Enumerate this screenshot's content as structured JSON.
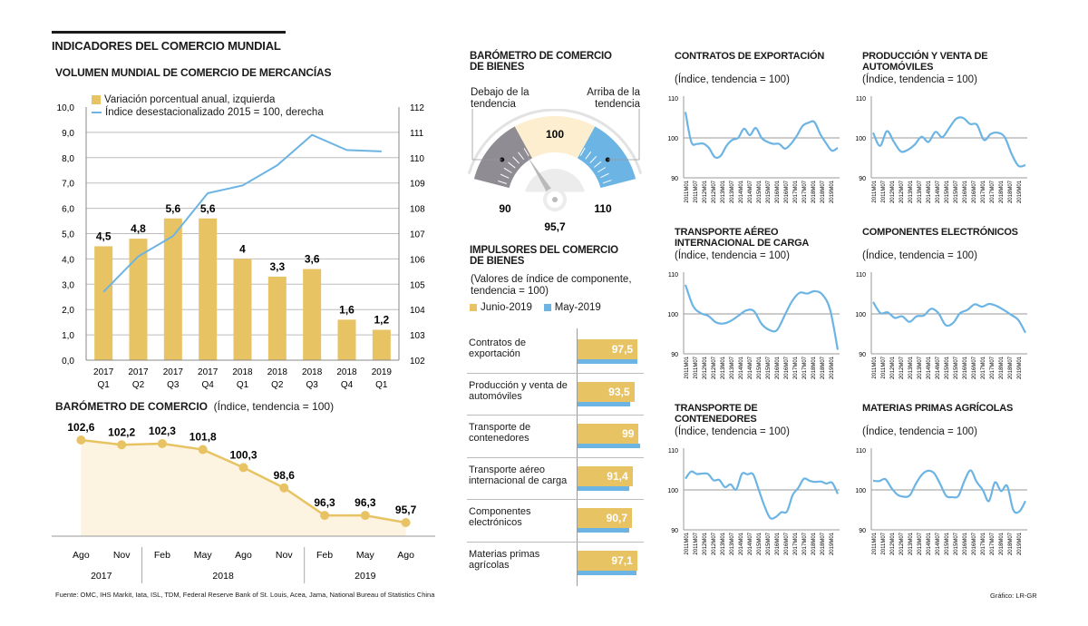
{
  "header": {
    "title": "INDICADORES DEL COMERCIO MUNDIAL",
    "volume_title": "VOLUMEN MUNDIAL DE COMERCIO DE MERCANCÍAS",
    "barometer_title": "BARÓMETRO DE COMERCIO",
    "barometer_subtitle": "(Índice, tendencia = 100)"
  },
  "footer": {
    "source": "Fuente: OMC,  IHS Markit, Iata, ISL, TDM,  Federal Reserve Bank of St. Louis, Acea, Jama, National Bureau of Statistics China",
    "credit": "Gráfico: LR-GR"
  },
  "colors": {
    "gold": "#E8C363",
    "blue": "#6CB4E4",
    "gray": "#8F8C93",
    "cream": "#FCEECF",
    "area": "#FDF3E1",
    "grid": "#BDBDBD"
  },
  "chart_data": [
    {
      "id": "volume",
      "type": "bar",
      "title": "VOLUMEN MUNDIAL DE COMERCIO DE MERCANCÍAS",
      "categories": [
        "2017|Q1",
        "2017|Q2",
        "2017|Q3",
        "2017|Q4",
        "2018|Q1",
        "2018|Q2",
        "2018|Q3",
        "2018|Q4",
        "2019|Q1"
      ],
      "series": [
        {
          "name": "Variación porcentual anual, izquierda",
          "type": "bar",
          "axis": "left",
          "values": [
            4.5,
            4.8,
            5.6,
            5.6,
            4.0,
            3.3,
            3.6,
            1.6,
            1.2
          ],
          "labels": [
            "4,5",
            "4,8",
            "5,6",
            "5,6",
            "4",
            "3,3",
            "3,6",
            "1,6",
            "1,2"
          ]
        },
        {
          "name": "Índice desestacionalizado 2015 = 100, derecha",
          "type": "line",
          "axis": "right",
          "values": [
            104.7,
            106.1,
            106.9,
            108.6,
            108.9,
            109.7,
            110.9,
            110.3,
            110.25
          ]
        }
      ],
      "ylim_left": [
        0,
        10
      ],
      "ylim_right": [
        102,
        112
      ],
      "yticks_left": [
        "0,0",
        "1,0",
        "2,0",
        "3,0",
        "4,0",
        "5,0",
        "6,0",
        "7,0",
        "8,0",
        "9,0",
        "10,0"
      ],
      "yticks_right": [
        "102",
        "103",
        "104",
        "105",
        "106",
        "107",
        "108",
        "109",
        "110",
        "111",
        "112"
      ],
      "grid": true,
      "legend": "top-left"
    },
    {
      "id": "barometer",
      "type": "area",
      "title": "BARÓMETRO DE COMERCIO",
      "subtitle": "(Índice, tendencia = 100)",
      "x": [
        "Ago",
        "Nov",
        "Feb",
        "May",
        "Ago",
        "Nov",
        "Feb",
        "May",
        "Ago"
      ],
      "years": [
        {
          "label": "2017",
          "span": 2
        },
        {
          "label": "2018",
          "span": 4
        },
        {
          "label": "2019",
          "span": 3
        }
      ],
      "values": [
        102.6,
        102.2,
        102.3,
        101.8,
        100.3,
        98.6,
        96.3,
        96.3,
        95.7
      ],
      "labels": [
        "102,6",
        "102,2",
        "102,3",
        "101,8",
        "100,3",
        "98,6",
        "96,3",
        "96,3",
        "95,7"
      ],
      "ylim": [
        94.5,
        103.5
      ]
    },
    {
      "id": "gauge",
      "type": "gauge",
      "title": "BARÓMETRO DE COMERCIO DE BIENES",
      "below_label": "Debajo de la tendencia",
      "above_label": "Arriba de la tendencia",
      "min": 90,
      "mid": 100,
      "max": 110,
      "min_label": "90",
      "mid_label": "100",
      "max_label": "110",
      "value": 95.7,
      "value_label": "95,7"
    },
    {
      "id": "drivers",
      "type": "bar",
      "orientation": "horizontal",
      "title": "IMPULSORES DEL COMERCIO DE BIENES",
      "subtitle": "(Valores de índice de componente, tendencia = 100)",
      "legend": [
        {
          "name": "Junio-2019",
          "color": "gold"
        },
        {
          "name": "May-2019",
          "color": "blue"
        }
      ],
      "categories": [
        "Contratos de exportación",
        "Producción y venta de automóviles",
        "Transporte de contenedores",
        "Transporte aéreo internacional de carga",
        "Componentes electrónicos",
        "Materias primas agrícolas"
      ],
      "series": [
        {
          "name": "Junio-2019",
          "values": [
            97.5,
            93.5,
            99.0,
            91.4,
            90.7,
            97.1
          ],
          "labels": [
            "97,5",
            "93,5",
            "99",
            "91,4",
            "90,7",
            "97,1"
          ]
        },
        {
          "name": "May-2019",
          "values": [
            97.3,
            88.0,
            100.5,
            87.0,
            87.0,
            96.0
          ]
        }
      ]
    },
    {
      "id": "contratos",
      "type": "line",
      "title": "CONTRATOS DE EXPORTACIÓN",
      "subtitle": "(Índice, tendencia = 100)",
      "ylim": [
        90,
        110
      ],
      "yticks": [
        "90",
        "100",
        "110"
      ],
      "xticks": [
        "2011M01",
        "2011M07",
        "2012M01",
        "2012M07",
        "2013M01",
        "2013M07",
        "2014M01",
        "2014M07",
        "2015M01",
        "2015M07",
        "2016M01",
        "2016M07",
        "2017M01",
        "2017M07",
        "2018M01",
        "2018M07",
        "2019M01"
      ],
      "values": [
        106.5,
        99,
        98.5,
        98.6,
        97.5,
        95.2,
        95.5,
        98,
        99.5,
        100,
        102.3,
        100.7,
        102.5,
        100,
        99,
        98.5,
        98.5,
        97.3,
        98.5,
        100.5,
        103,
        103.8,
        104,
        101,
        98.7,
        96.8,
        97.5
      ]
    },
    {
      "id": "automoviles",
      "type": "line",
      "title": "PRODUCCIÓN Y VENTA DE AUTOMÓVILES",
      "subtitle": "(Índice, tendencia = 100)",
      "ylim": [
        90,
        110
      ],
      "yticks": [
        "90",
        "100",
        "110"
      ],
      "xticks": [
        "2011M01",
        "2011M07",
        "2012M01",
        "2012M07",
        "2013M01",
        "2013M07",
        "2014M01",
        "2014M07",
        "2015M01",
        "2015M07",
        "2016M01",
        "2016M07",
        "2017M01",
        "2017M07",
        "2018M01",
        "2018M07",
        "2019M01"
      ],
      "values": [
        101.3,
        98,
        101.7,
        99,
        96.6,
        97,
        98.3,
        100.3,
        99,
        101.5,
        100.2,
        102.5,
        104.8,
        105,
        103.5,
        103.3,
        99.5,
        101,
        101.3,
        100.2,
        96,
        93,
        93.2
      ]
    },
    {
      "id": "aereo",
      "type": "line",
      "title": "TRANSPORTE AÉREO INTERNACIONAL DE CARGA",
      "subtitle": "(Índice, tendencia = 100)",
      "ylim": [
        90,
        110
      ],
      "yticks": [
        "90",
        "100",
        "110"
      ],
      "xticks": [
        "2011M01",
        "2011M07",
        "2012M01",
        "2012M07",
        "2013M01",
        "2013M07",
        "2014M01",
        "2014M07",
        "2015M01",
        "2015M07",
        "2016M01",
        "2016M07",
        "2017M01",
        "2017M07",
        "2018M01",
        "2018M07",
        "2019M01"
      ],
      "values": [
        107.3,
        102,
        100.2,
        99.5,
        97.9,
        97.6,
        98.3,
        99.6,
        100.9,
        100.7,
        97.5,
        96,
        95.9,
        99.5,
        103.2,
        105.3,
        105.1,
        105.7,
        104.8,
        101,
        91
      ]
    },
    {
      "id": "electronicos",
      "type": "line",
      "title": "COMPONENTES ELECTRÓNICOS",
      "subtitle": "(Índice, tendencia = 100)",
      "ylim": [
        90,
        110
      ],
      "yticks": [
        "90",
        "100",
        "110"
      ],
      "xticks": [
        "2011M01",
        "2011M07",
        "2012M01",
        "2012M07",
        "2013M01",
        "2013M07",
        "2014M01",
        "2014M07",
        "2015M01",
        "2015M07",
        "2016M01",
        "2016M07",
        "2017M01",
        "2017M07",
        "2018M01",
        "2018M07",
        "2019M01"
      ],
      "values": [
        103,
        100.2,
        100.4,
        99,
        99.4,
        98,
        99.4,
        99.6,
        101.3,
        100.2,
        97.2,
        97.7,
        100.2,
        101,
        102.4,
        101.8,
        102.5,
        102,
        101,
        99.8,
        98.5,
        95.3
      ]
    },
    {
      "id": "contenedores",
      "type": "line",
      "title": "TRANSPORTE DE CONTENEDORES",
      "subtitle": "(Índice, tendencia = 100)",
      "ylim": [
        90,
        110
      ],
      "yticks": [
        "90",
        "100",
        "110"
      ],
      "xticks": [
        "2011M01",
        "2011M07",
        "2012M01",
        "2012M07",
        "2013M01",
        "2013M07",
        "2014M01",
        "2014M07",
        "2015M01",
        "2015M07",
        "2016M01",
        "2016M07",
        "2017M01",
        "2017M07",
        "2018M01",
        "2018M07",
        "2019M01"
      ],
      "values": [
        102.8,
        104.6,
        104,
        104.1,
        104,
        102.4,
        102.5,
        100.7,
        101.4,
        100.1,
        104,
        103.9,
        103.9,
        100,
        96,
        93,
        93.2,
        94.4,
        94.6,
        98.7,
        100.5,
        102.8,
        102.3,
        102,
        102.1,
        101.6,
        101.8,
        99
      ]
    },
    {
      "id": "agricolas",
      "type": "line",
      "title": "MATERIAS PRIMAS AGRÍCOLAS",
      "subtitle": "(Índice, tendencia = 100)",
      "ylim": [
        90,
        110
      ],
      "yticks": [
        "90",
        "100",
        "110"
      ],
      "xticks": [
        "2011M01",
        "2011M07",
        "2012M01",
        "2012M07",
        "2013M01",
        "2013M07",
        "2014M01",
        "2014M07",
        "2015M01",
        "2015M07",
        "2016M01",
        "2016M07",
        "2017M01",
        "2017M07",
        "2018M01",
        "2018M07",
        "2019M01"
      ],
      "values": [
        102.3,
        102.2,
        102.7,
        100.5,
        98.8,
        98.3,
        98.6,
        101.5,
        103.8,
        104.8,
        104.2,
        101.5,
        98.5,
        98.2,
        98.5,
        102.3,
        104.9,
        102,
        100,
        97.2,
        101.9,
        99.7,
        101,
        95,
        94.6,
        97.2
      ]
    }
  ]
}
